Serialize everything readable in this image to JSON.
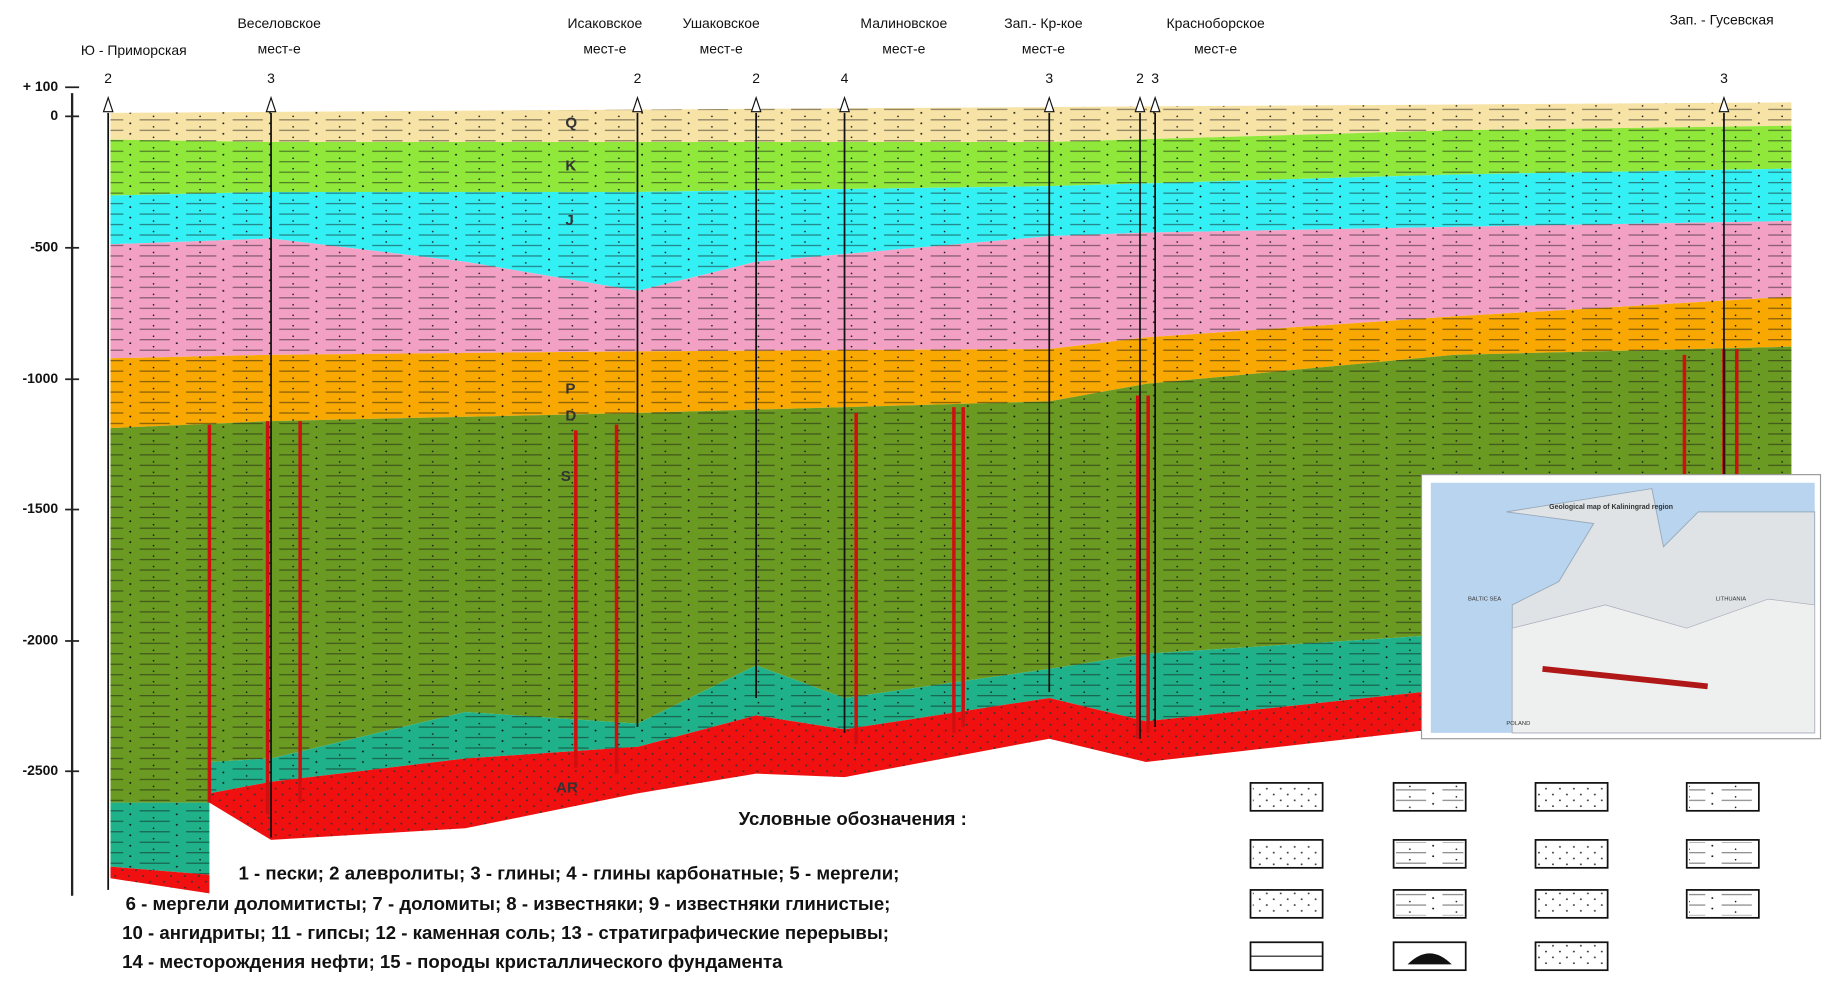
{
  "wells": [
    {
      "name": [
        "Ю - Приморская"
      ],
      "numbers": [
        "2"
      ]
    },
    {
      "name": [
        "Веселовское",
        "мест-е"
      ],
      "numbers": [
        "3"
      ]
    },
    {
      "name": [
        "Исаковское",
        "мест-е"
      ],
      "numbers": [
        "2"
      ]
    },
    {
      "name": [
        "Ушаковское",
        "мест-е"
      ],
      "numbers": [
        "2"
      ]
    },
    {
      "name": [
        "Малиновское",
        "мест-е"
      ],
      "numbers": [
        "4"
      ]
    },
    {
      "name": [
        "Зап.- Кр-кое",
        "мест-е"
      ],
      "numbers": [
        "3"
      ]
    },
    {
      "name": [
        "Красноборское",
        "мест-е"
      ],
      "numbers": [
        "2",
        "3"
      ]
    },
    {
      "name": [
        "Зап. - Гусевская"
      ],
      "numbers": [
        "3"
      ]
    }
  ],
  "depth_labels": [
    "+ 100",
    "0",
    "-500",
    "-1000",
    "-1500",
    "-2000",
    "-2500"
  ],
  "layers": [
    "Q",
    "K",
    "J",
    "P",
    "D",
    "S",
    "AR"
  ],
  "legend": {
    "title": "Условные обозначения :",
    "lines": [
      "1 - пески;  2 алевролиты;  3 - глины;  4 - глины карбонатные;  5 - мергели;",
      "6 - мергели доломитисты; 7 - доломиты;  8 - известняки;  9 - известняки глинистые;",
      "10 - ангидриты; 11 - гипсы; 12 - каменная соль; 13 - стратиграфические перерывы;",
      "14 - месторождения нефти; 15 - породы кристаллического фундамента"
    ]
  },
  "inset": {
    "title": "Geological map of Kaliningrad region",
    "labels": [
      "BALTIC SEA",
      "LITHUANIA",
      "POLAND"
    ]
  }
}
